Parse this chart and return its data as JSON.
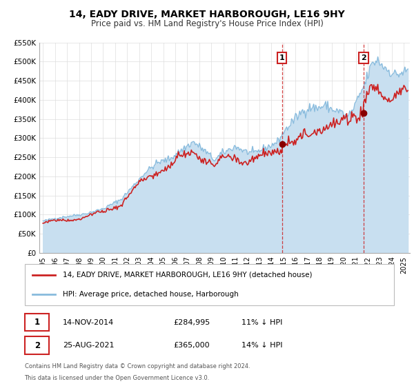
{
  "title": "14, EADY DRIVE, MARKET HARBOROUGH, LE16 9HY",
  "subtitle": "Price paid vs. HM Land Registry's House Price Index (HPI)",
  "ylim": [
    0,
    550000
  ],
  "yticks": [
    0,
    50000,
    100000,
    150000,
    200000,
    250000,
    300000,
    350000,
    400000,
    450000,
    500000,
    550000
  ],
  "ytick_labels": [
    "£0",
    "£50K",
    "£100K",
    "£150K",
    "£200K",
    "£250K",
    "£300K",
    "£350K",
    "£400K",
    "£450K",
    "£500K",
    "£550K"
  ],
  "xlim_start": 1994.7,
  "xlim_end": 2025.5,
  "xticks": [
    1995,
    1996,
    1997,
    1998,
    1999,
    2000,
    2001,
    2002,
    2003,
    2004,
    2005,
    2006,
    2007,
    2008,
    2009,
    2010,
    2011,
    2012,
    2013,
    2014,
    2015,
    2016,
    2017,
    2018,
    2019,
    2020,
    2021,
    2022,
    2023,
    2024,
    2025
  ],
  "property_color": "#cc2222",
  "hpi_color": "#88bbdd",
  "hpi_fill_color": "#c8dff0",
  "marker_color": "#880000",
  "vline_color": "#cc2222",
  "sale1_x": 2014.87,
  "sale1_y": 284995,
  "sale2_x": 2021.65,
  "sale2_y": 365000,
  "legend_label1": "14, EADY DRIVE, MARKET HARBOROUGH, LE16 9HY (detached house)",
  "legend_label2": "HPI: Average price, detached house, Harborough",
  "table_row1_num": "1",
  "table_row1_date": "14-NOV-2014",
  "table_row1_price": "£284,995",
  "table_row1_hpi": "11% ↓ HPI",
  "table_row2_num": "2",
  "table_row2_date": "25-AUG-2021",
  "table_row2_price": "£365,000",
  "table_row2_hpi": "14% ↓ HPI",
  "footer1": "Contains HM Land Registry data © Crown copyright and database right 2024.",
  "footer2": "This data is licensed under the Open Government Licence v3.0.",
  "background_color": "#ffffff",
  "plot_bg_color": "#ffffff",
  "grid_color": "#dddddd"
}
